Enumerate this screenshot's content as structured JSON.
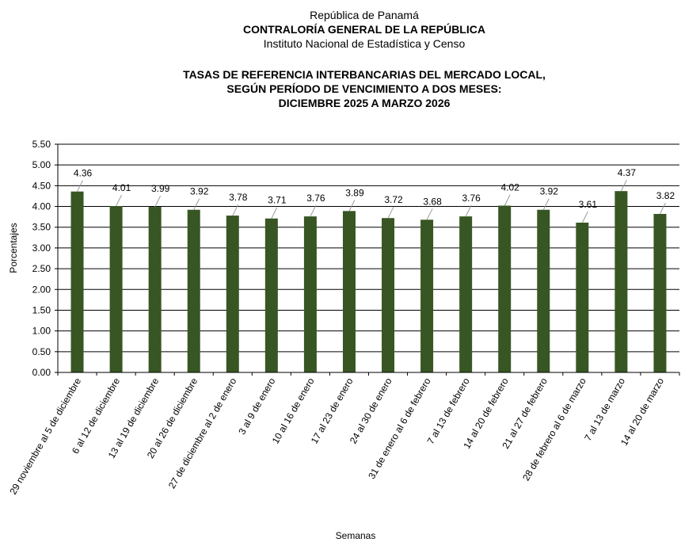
{
  "header": {
    "line1": "República de Panamá",
    "line2": "CONTRALORÍA GENERAL DE LA REPÚBLICA",
    "line3": "Instituto  Nacional de Estadística  y Censo"
  },
  "chart_data": {
    "type": "bar",
    "title_lines": [
      "TASAS DE REFERENCIA INTERBANCARIAS DEL MERCADO LOCAL,",
      "SEGÚN PERÍODO DE VENCIMIENTO A DOS MESES:",
      "DICIEMBRE 2025 A MARZO  2026"
    ],
    "xlabel": "Semanas",
    "ylabel": "Porcentajes",
    "ylim": [
      0,
      5.5
    ],
    "yticks": [
      "0.00",
      "0.50",
      "1.00",
      "1.50",
      "2.00",
      "2.50",
      "3.00",
      "3.50",
      "4.00",
      "4.50",
      "5.00",
      "5.50"
    ],
    "grid": true,
    "bar_color": "#375623",
    "categories": [
      "29 noviembre al 5 de diciembre",
      "6 al 12 de diciembre",
      "13 al 19 de diciembre",
      "20 al 26 de diciembre",
      "27 de diciembre al 2 de enero",
      "3 al 9 de enero",
      "10 al 16 de enero",
      "17 al 23 de enero",
      "24 al 30 de enero",
      "31 de enero al 6 de febrero",
      "7 al 13 de febrero",
      "14 al 20 de febrero",
      "21 al 27 de febrero",
      "28 de febrero al 6 de marzo",
      "7 al 13 de marzo",
      "14 al 20 de marzo"
    ],
    "values": [
      4.36,
      4.01,
      3.99,
      3.92,
      3.78,
      3.71,
      3.76,
      3.89,
      3.72,
      3.68,
      3.76,
      4.02,
      3.92,
      3.61,
      4.37,
      3.82
    ],
    "value_labels": [
      "4.36",
      "4.01",
      "3.99",
      "3.92",
      "3.78",
      "3.71",
      "3.76",
      "3.89",
      "3.72",
      "3.68",
      "3.76",
      "4.02",
      "3.92",
      "3.61",
      "4.37",
      "3.82"
    ]
  }
}
